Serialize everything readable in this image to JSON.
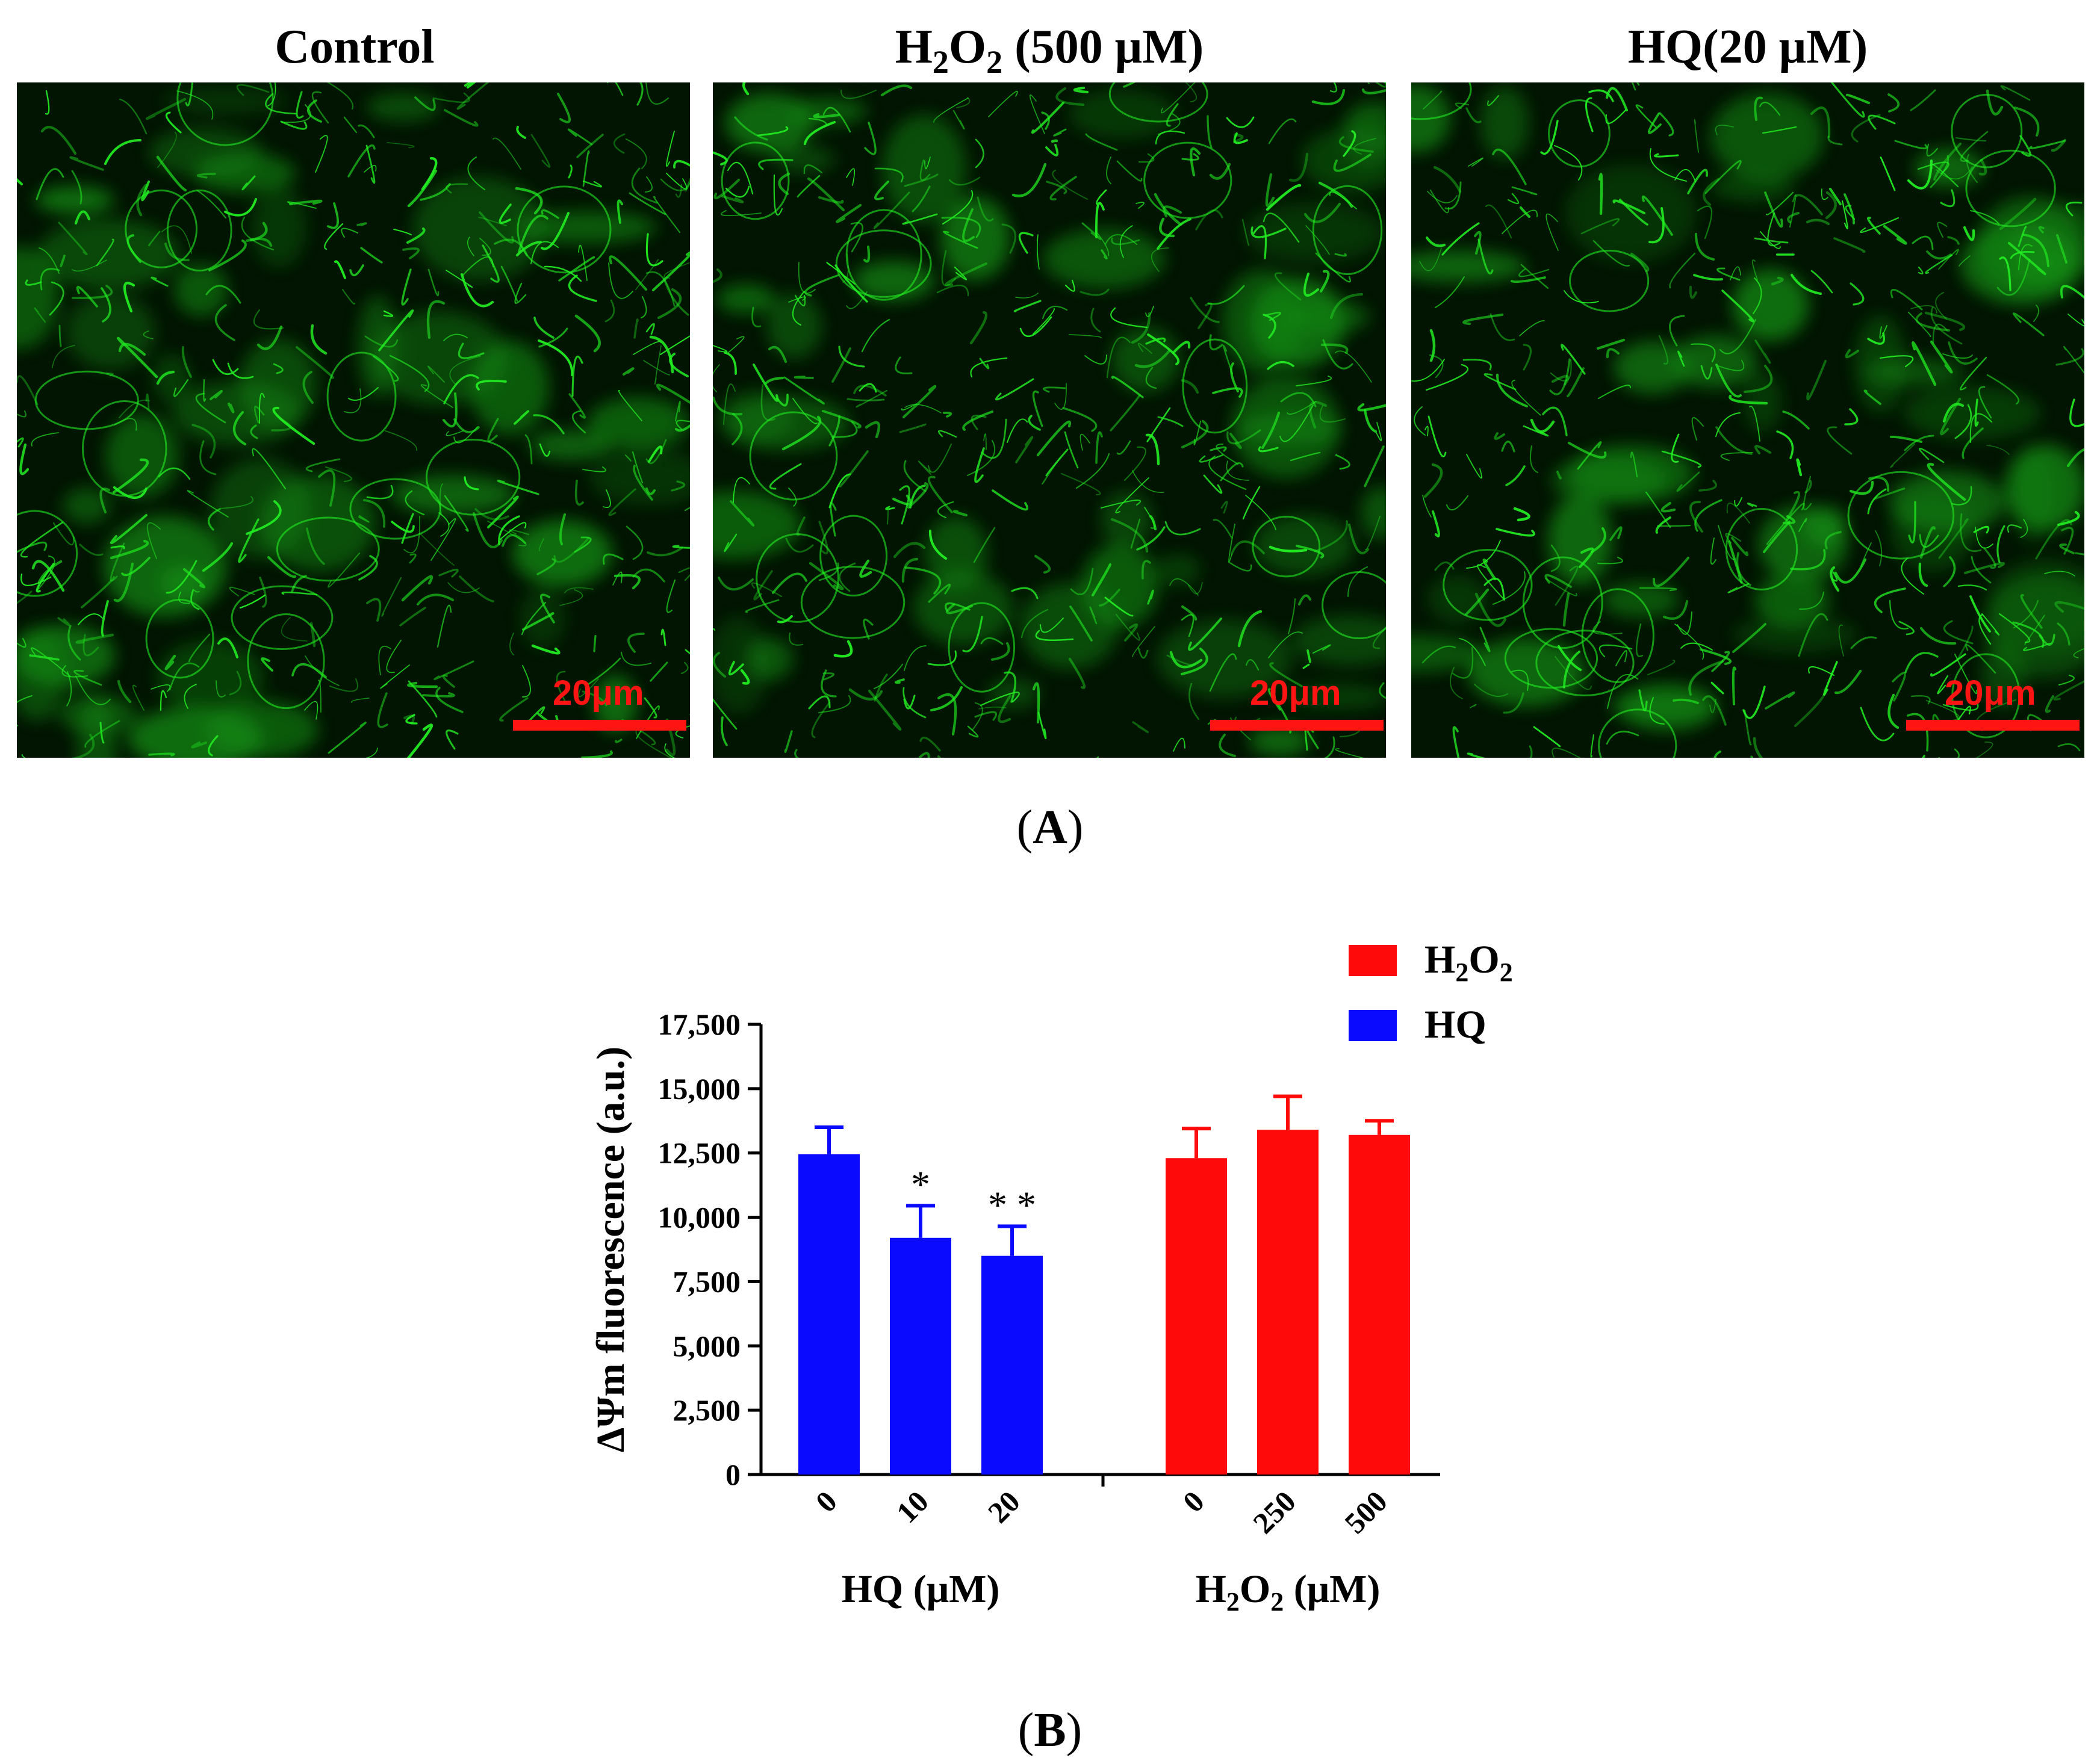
{
  "panel_a": {
    "letter": "A",
    "images": [
      {
        "title_main": "Control",
        "scale_label": "20μm"
      },
      {
        "title_main": "H",
        "title_sub1": "2",
        "title_mid": "O",
        "title_sub2": "2",
        "title_tail": " (500 μM)",
        "scale_label": "20μm"
      },
      {
        "title_main": "HQ(20 μM)",
        "scale_label": "20μm"
      }
    ]
  },
  "panel_b": {
    "letter": "B"
  },
  "colors": {
    "hq": "#0a0aff",
    "h2o2": "#ff0a0a",
    "micro_green": "#22ee22",
    "scale_red": "#ff1414"
  },
  "chart_data": {
    "type": "bar",
    "ylabel": "ΔΨm fluorescence (a.u.)",
    "ylim": [
      0,
      17500
    ],
    "yticks": [
      0,
      2500,
      5000,
      7500,
      10000,
      12500,
      15000,
      17500
    ],
    "ytick_labels": [
      "0",
      "2,500",
      "5,000",
      "7,500",
      "10,000",
      "12,500",
      "15,000",
      "17,500"
    ],
    "legend_placement": "top-right",
    "legend": [
      {
        "name": "H",
        "sub1": "2",
        "mid": "O",
        "sub2": "2",
        "color": "#ff0a0a"
      },
      {
        "name": "HQ",
        "color": "#0a0aff"
      }
    ],
    "groups": [
      {
        "label_main": "HQ  (μM)",
        "color": "#0a0aff",
        "categories": [
          "0",
          "10",
          "20"
        ],
        "values": [
          12450,
          9200,
          8500
        ],
        "errors": [
          1050,
          1250,
          1150
        ],
        "annotations": [
          "",
          "*",
          "* *"
        ]
      },
      {
        "label_main": "H",
        "label_sub1": "2",
        "label_mid": "O",
        "label_sub2": "2",
        "label_tail": " (μM)",
        "color": "#ff0a0a",
        "categories": [
          "0",
          "250",
          "500"
        ],
        "values": [
          12300,
          13400,
          13200
        ],
        "errors": [
          1150,
          1300,
          550
        ],
        "annotations": [
          "",
          "",
          ""
        ]
      }
    ]
  }
}
